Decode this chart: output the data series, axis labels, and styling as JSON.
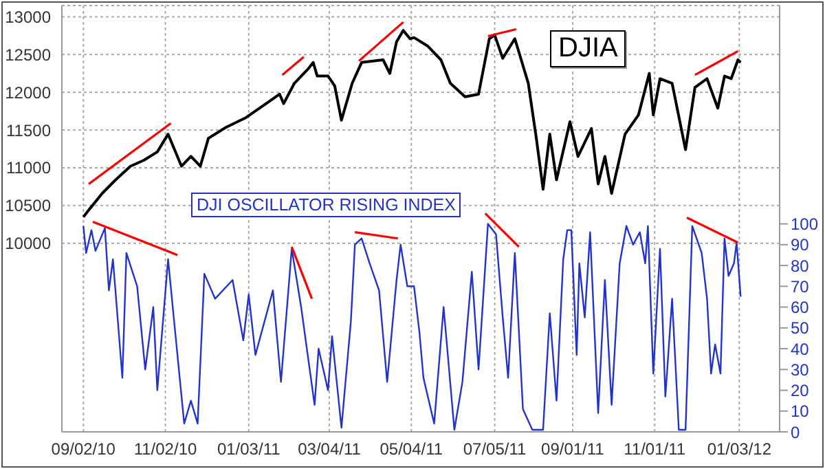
{
  "chart_data": {
    "type": "line",
    "xlim": [
      "2010-08-17",
      "2012-02-02"
    ],
    "xticks": [
      {
        "value": "2010-09-02",
        "label": "09/02/10"
      },
      {
        "value": "2010-11-02",
        "label": "11/02/10"
      },
      {
        "value": "2011-01-03",
        "label": "01/03/11"
      },
      {
        "value": "2011-03-04",
        "label": "03/04/11"
      },
      {
        "value": "2011-05-04",
        "label": "05/04/11"
      },
      {
        "value": "2011-07-05",
        "label": "07/05/11"
      },
      {
        "value": "2011-09-01",
        "label": "09/01/11"
      },
      {
        "value": "2011-11-01",
        "label": "11/01/11"
      },
      {
        "value": "2012-01-03",
        "label": "01/03/12"
      }
    ],
    "ylim": [
      7500,
      13150
    ],
    "yticks": [
      10000,
      10500,
      11000,
      11500,
      12000,
      12500,
      13000
    ],
    "y2lim": [
      0,
      205
    ],
    "y2ticks": [
      0,
      10,
      20,
      30,
      40,
      50,
      60,
      70,
      80,
      90,
      100
    ],
    "grid": true,
    "series": [
      {
        "name": "DJIA",
        "color": "#000000",
        "x": [
          "2010-09-02",
          "2010-09-06",
          "2010-09-16",
          "2010-09-26",
          "2010-10-07",
          "2010-10-17",
          "2010-10-27",
          "2010-11-04",
          "2010-11-14",
          "2010-11-21",
          "2010-11-28",
          "2010-12-04",
          "2010-12-17",
          "2011-01-01",
          "2011-01-16",
          "2011-01-26",
          "2011-01-29",
          "2011-02-06",
          "2011-02-16",
          "2011-02-20",
          "2011-02-23",
          "2011-03-03",
          "2011-03-08",
          "2011-03-13",
          "2011-03-21",
          "2011-03-28",
          "2011-04-13",
          "2011-04-18",
          "2011-04-23",
          "2011-04-28",
          "2011-05-03",
          "2011-05-06",
          "2011-05-16",
          "2011-05-26",
          "2011-06-02",
          "2011-06-13",
          "2011-06-23",
          "2011-07-01",
          "2011-07-05",
          "2011-07-11",
          "2011-07-20",
          "2011-07-30",
          "2011-08-05",
          "2011-08-10",
          "2011-08-15",
          "2011-08-20",
          "2011-08-30",
          "2011-09-05",
          "2011-09-15",
          "2011-09-20",
          "2011-09-25",
          "2011-09-30",
          "2011-10-10",
          "2011-10-20",
          "2011-10-28",
          "2011-10-31",
          "2011-11-05",
          "2011-11-14",
          "2011-11-24",
          "2011-12-01",
          "2011-12-10",
          "2011-12-18",
          "2011-12-23",
          "2011-12-28",
          "2012-01-02",
          "2012-01-04"
        ],
        "values": [
          10347,
          10440,
          10660,
          10840,
          11020,
          11100,
          11210,
          11445,
          11020,
          11150,
          11020,
          11390,
          11535,
          11665,
          11850,
          11975,
          11850,
          12120,
          12305,
          12395,
          12215,
          12215,
          12085,
          11630,
          12120,
          12395,
          12430,
          12250,
          12670,
          12820,
          12710,
          12725,
          12615,
          12430,
          12120,
          11940,
          11975,
          12710,
          12760,
          12450,
          12710,
          12120,
          11390,
          10715,
          11445,
          10840,
          11610,
          11150,
          11520,
          10785,
          11150,
          10660,
          11445,
          11700,
          12250,
          11700,
          12180,
          12120,
          11240,
          12065,
          12180,
          11790,
          12215,
          12180,
          12430,
          12395
        ]
      },
      {
        "name": "DJI OSCILLATOR RISING INDEX",
        "color": "#2233cc",
        "axis": "y2",
        "x": [
          "2010-09-02",
          "2010-09-04",
          "2010-09-08",
          "2010-09-11",
          "2010-09-18",
          "2010-09-21",
          "2010-09-24",
          "2010-10-01",
          "2010-10-04",
          "2010-10-12",
          "2010-10-18",
          "2010-10-24",
          "2010-10-27",
          "2010-11-04",
          "2010-11-09",
          "2010-11-16",
          "2010-11-21",
          "2010-11-26",
          "2010-12-01",
          "2010-12-09",
          "2010-12-22",
          "2010-12-30",
          "2011-01-03",
          "2011-01-08",
          "2011-01-21",
          "2011-01-27",
          "2011-02-04",
          "2011-02-11",
          "2011-02-21",
          "2011-02-24",
          "2011-03-03",
          "2011-03-06",
          "2011-03-13",
          "2011-03-20",
          "2011-03-23",
          "2011-03-28",
          "2011-04-03",
          "2011-04-10",
          "2011-04-16",
          "2011-04-23",
          "2011-04-26",
          "2011-05-01",
          "2011-05-06",
          "2011-05-10",
          "2011-05-13",
          "2011-05-21",
          "2011-05-28",
          "2011-06-05",
          "2011-06-11",
          "2011-06-18",
          "2011-06-23",
          "2011-06-30",
          "2011-07-06",
          "2011-07-11",
          "2011-07-15",
          "2011-07-20",
          "2011-07-26",
          "2011-08-02",
          "2011-08-10",
          "2011-08-15",
          "2011-08-20",
          "2011-08-25",
          "2011-08-28",
          "2011-08-31",
          "2011-09-04",
          "2011-09-06",
          "2011-09-10",
          "2011-09-14",
          "2011-09-20",
          "2011-09-25",
          "2011-09-30",
          "2011-10-06",
          "2011-10-11",
          "2011-10-16",
          "2011-10-21",
          "2011-10-25",
          "2011-10-27",
          "2011-10-31",
          "2011-11-05",
          "2011-11-09",
          "2011-11-14",
          "2011-11-19",
          "2011-11-24",
          "2011-11-29",
          "2011-12-06",
          "2011-12-10",
          "2011-12-13",
          "2011-12-16",
          "2011-12-20",
          "2011-12-23",
          "2011-12-26",
          "2011-12-30",
          "2012-01-01",
          "2012-01-04"
        ],
        "values": [
          99,
          86,
          97,
          87,
          98,
          68,
          83,
          26,
          86,
          70,
          30,
          60,
          20,
          83,
          50,
          4,
          15,
          4,
          76,
          64,
          73,
          44,
          66,
          37,
          68,
          24,
          88,
          60,
          13,
          40,
          20,
          46,
          2,
          53,
          90,
          93,
          81,
          68,
          24,
          73,
          90,
          70,
          70,
          48,
          26,
          4,
          60,
          1,
          24,
          77,
          30,
          100,
          95,
          55,
          26,
          86,
          11,
          1,
          1,
          57,
          15,
          83,
          97,
          97,
          37,
          81,
          55,
          96,
          9,
          73,
          13,
          81,
          99,
          90,
          96,
          81,
          99,
          28,
          88,
          17,
          64,
          1,
          1,
          99,
          86,
          64,
          28,
          42,
          28,
          93,
          75,
          81,
          91,
          65
        ]
      },
      {
        "color": "#ff0000",
        "x": [
          "2010-09-06",
          "2010-11-06"
        ],
        "values": [
          10785,
          11590
        ]
      },
      {
        "color": "#ff0000",
        "x": [
          "2011-01-28",
          "2011-02-13"
        ],
        "values": [
          12230,
          12470
        ]
      },
      {
        "color": "#ff0000",
        "x": [
          "2011-03-26",
          "2011-04-28"
        ],
        "values": [
          12415,
          12930
        ]
      },
      {
        "color": "#ff0000",
        "x": [
          "2011-06-30",
          "2011-07-21"
        ],
        "values": [
          12745,
          12835
        ]
      },
      {
        "color": "#ff0000",
        "x": [
          "2011-12-01",
          "2012-01-02"
        ],
        "values": [
          12230,
          12545
        ]
      },
      {
        "color": "#ff0000",
        "axis": "y2",
        "x": [
          "2010-09-09",
          "2010-11-11"
        ],
        "values": [
          101,
          85
        ]
      },
      {
        "color": "#ff0000",
        "axis": "y2",
        "x": [
          "2011-02-04",
          "2011-02-19"
        ],
        "values": [
          89,
          64
        ]
      },
      {
        "color": "#ff0000",
        "axis": "y2",
        "x": [
          "2011-03-23",
          "2011-04-24"
        ],
        "values": [
          96,
          93
        ]
      },
      {
        "color": "#ff0000",
        "axis": "y2",
        "x": [
          "2011-06-28",
          "2011-07-23"
        ],
        "values": [
          105,
          89
        ]
      },
      {
        "color": "#ff0000",
        "axis": "y2",
        "x": [
          "2011-11-25",
          "2012-01-02"
        ],
        "values": [
          103,
          91
        ]
      }
    ]
  }
}
